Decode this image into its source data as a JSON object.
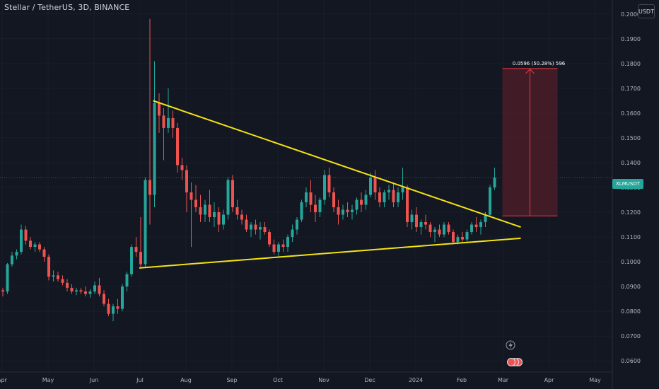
{
  "header": {
    "symbol_title": "Stellar / TetherUS, 3D, BINANCE",
    "currency": "USDT"
  },
  "price_label": "XLMUSDT",
  "measure_label": "0.0596 (50.28%) 596",
  "colors": {
    "background": "#131722",
    "up": "#26a69a",
    "down": "#ef5350",
    "trendline": "#f5e313",
    "measure_box": "#4a1d27",
    "measure_border": "#f23645",
    "axis_text": "#b2b5be",
    "current_price_line": "#26a69a"
  },
  "chart_data": {
    "type": "candlestick",
    "title": "Stellar / TetherUS, 3D, BINANCE",
    "y_axis": {
      "range": [
        0.0555,
        0.2045
      ],
      "ticks": [
        "0.2000",
        "0.1900",
        "0.1800",
        "0.1700",
        "0.1600",
        "0.1500",
        "0.1400",
        "0.1300",
        "0.1200",
        "0.1100",
        "0.1000",
        "0.0900",
        "0.0800",
        "0.0700",
        "0.0600"
      ],
      "position": "right",
      "unit": "USDT"
    },
    "x_axis": {
      "labels": [
        "Apr",
        "May",
        "Jun",
        "Jul",
        "Aug",
        "Sep",
        "Oct",
        "Nov",
        "Dec",
        "2024",
        "Feb",
        "Mar",
        "Apr",
        "May"
      ],
      "label_index": [
        0,
        10,
        20,
        30,
        40,
        50,
        60,
        70,
        80,
        90,
        100,
        109,
        119,
        129
      ]
    },
    "current_price": 0.134,
    "candles": [
      [
        0.0885,
        0.0895,
        0.086,
        0.088
      ],
      [
        0.088,
        0.0995,
        0.087,
        0.099
      ],
      [
        0.099,
        0.104,
        0.098,
        0.1025
      ],
      [
        0.1025,
        0.105,
        0.101,
        0.104
      ],
      [
        0.104,
        0.115,
        0.103,
        0.113
      ],
      [
        0.113,
        0.1145,
        0.107,
        0.1085
      ],
      [
        0.1085,
        0.11,
        0.105,
        0.106
      ],
      [
        0.106,
        0.108,
        0.104,
        0.107
      ],
      [
        0.107,
        0.108,
        0.104,
        0.105
      ],
      [
        0.105,
        0.106,
        0.1,
        0.102
      ],
      [
        0.102,
        0.103,
        0.0925,
        0.094
      ],
      [
        0.094,
        0.0965,
        0.092,
        0.0945
      ],
      [
        0.0945,
        0.096,
        0.092,
        0.093
      ],
      [
        0.093,
        0.0945,
        0.0905,
        0.0915
      ],
      [
        0.0915,
        0.093,
        0.088,
        0.0895
      ],
      [
        0.0895,
        0.091,
        0.087,
        0.088
      ],
      [
        0.088,
        0.0895,
        0.0865,
        0.0885
      ],
      [
        0.0885,
        0.0895,
        0.087,
        0.088
      ],
      [
        0.088,
        0.09,
        0.086,
        0.087
      ],
      [
        0.087,
        0.089,
        0.0855,
        0.088
      ],
      [
        0.088,
        0.092,
        0.087,
        0.0905
      ],
      [
        0.0905,
        0.0935,
        0.086,
        0.087
      ],
      [
        0.087,
        0.0885,
        0.082,
        0.083
      ],
      [
        0.083,
        0.085,
        0.078,
        0.079
      ],
      [
        0.079,
        0.083,
        0.076,
        0.082
      ],
      [
        0.082,
        0.085,
        0.079,
        0.081
      ],
      [
        0.081,
        0.091,
        0.08,
        0.09
      ],
      [
        0.09,
        0.096,
        0.088,
        0.095
      ],
      [
        0.095,
        0.107,
        0.094,
        0.106
      ],
      [
        0.106,
        0.11,
        0.102,
        0.104
      ],
      [
        0.104,
        0.118,
        0.098,
        0.099
      ],
      [
        0.099,
        0.134,
        0.098,
        0.133
      ],
      [
        0.133,
        0.198,
        0.115,
        0.127
      ],
      [
        0.127,
        0.181,
        0.122,
        0.164
      ],
      [
        0.164,
        0.168,
        0.152,
        0.159
      ],
      [
        0.159,
        0.162,
        0.141,
        0.154
      ],
      [
        0.154,
        0.17,
        0.152,
        0.158
      ],
      [
        0.158,
        0.161,
        0.15,
        0.154
      ],
      [
        0.154,
        0.156,
        0.136,
        0.139
      ],
      [
        0.139,
        0.142,
        0.133,
        0.137
      ],
      [
        0.137,
        0.139,
        0.12,
        0.128
      ],
      [
        0.128,
        0.132,
        0.106,
        0.125
      ],
      [
        0.125,
        0.131,
        0.12,
        0.122
      ],
      [
        0.122,
        0.127,
        0.116,
        0.119
      ],
      [
        0.119,
        0.125,
        0.116,
        0.123
      ],
      [
        0.123,
        0.129,
        0.116,
        0.118
      ],
      [
        0.118,
        0.124,
        0.114,
        0.12
      ],
      [
        0.12,
        0.122,
        0.112,
        0.115
      ],
      [
        0.115,
        0.121,
        0.113,
        0.119
      ],
      [
        0.119,
        0.134,
        0.117,
        0.133
      ],
      [
        0.133,
        0.135,
        0.12,
        0.122
      ],
      [
        0.122,
        0.125,
        0.117,
        0.119
      ],
      [
        0.119,
        0.121,
        0.115,
        0.117
      ],
      [
        0.117,
        0.119,
        0.112,
        0.113
      ],
      [
        0.113,
        0.116,
        0.11,
        0.115
      ],
      [
        0.115,
        0.117,
        0.111,
        0.113
      ],
      [
        0.113,
        0.116,
        0.109,
        0.114
      ],
      [
        0.114,
        0.116,
        0.111,
        0.112
      ],
      [
        0.112,
        0.113,
        0.106,
        0.107
      ],
      [
        0.107,
        0.109,
        0.103,
        0.104
      ],
      [
        0.104,
        0.108,
        0.102,
        0.107
      ],
      [
        0.107,
        0.109,
        0.104,
        0.106
      ],
      [
        0.106,
        0.111,
        0.104,
        0.11
      ],
      [
        0.11,
        0.115,
        0.108,
        0.113
      ],
      [
        0.113,
        0.118,
        0.111,
        0.117
      ],
      [
        0.117,
        0.125,
        0.116,
        0.124
      ],
      [
        0.124,
        0.13,
        0.122,
        0.128
      ],
      [
        0.128,
        0.133,
        0.12,
        0.123
      ],
      [
        0.123,
        0.127,
        0.116,
        0.12
      ],
      [
        0.12,
        0.126,
        0.118,
        0.125
      ],
      [
        0.125,
        0.137,
        0.123,
        0.135
      ],
      [
        0.135,
        0.138,
        0.126,
        0.128
      ],
      [
        0.128,
        0.13,
        0.12,
        0.122
      ],
      [
        0.122,
        0.125,
        0.115,
        0.119
      ],
      [
        0.119,
        0.123,
        0.117,
        0.121
      ],
      [
        0.121,
        0.124,
        0.118,
        0.12
      ],
      [
        0.12,
        0.123,
        0.117,
        0.121
      ],
      [
        0.121,
        0.126,
        0.119,
        0.125
      ],
      [
        0.125,
        0.128,
        0.12,
        0.123
      ],
      [
        0.123,
        0.129,
        0.121,
        0.127
      ],
      [
        0.127,
        0.136,
        0.126,
        0.134
      ],
      [
        0.134,
        0.137,
        0.125,
        0.128
      ],
      [
        0.128,
        0.13,
        0.122,
        0.124
      ],
      [
        0.124,
        0.129,
        0.122,
        0.128
      ],
      [
        0.128,
        0.131,
        0.125,
        0.129
      ],
      [
        0.129,
        0.132,
        0.122,
        0.124
      ],
      [
        0.124,
        0.13,
        0.122,
        0.128
      ],
      [
        0.128,
        0.138,
        0.125,
        0.13
      ],
      [
        0.13,
        0.131,
        0.114,
        0.116
      ],
      [
        0.116,
        0.121,
        0.113,
        0.119
      ],
      [
        0.119,
        0.122,
        0.112,
        0.114
      ],
      [
        0.114,
        0.117,
        0.111,
        0.116
      ],
      [
        0.116,
        0.119,
        0.113,
        0.115
      ],
      [
        0.115,
        0.116,
        0.11,
        0.112
      ],
      [
        0.112,
        0.114,
        0.108,
        0.113
      ],
      [
        0.113,
        0.115,
        0.11,
        0.111
      ],
      [
        0.111,
        0.116,
        0.11,
        0.115
      ],
      [
        0.115,
        0.116,
        0.111,
        0.112
      ],
      [
        0.112,
        0.113,
        0.107,
        0.108
      ],
      [
        0.108,
        0.111,
        0.107,
        0.11
      ],
      [
        0.11,
        0.112,
        0.108,
        0.109
      ],
      [
        0.109,
        0.113,
        0.108,
        0.112
      ],
      [
        0.112,
        0.116,
        0.111,
        0.115
      ],
      [
        0.115,
        0.118,
        0.112,
        0.114
      ],
      [
        0.114,
        0.117,
        0.111,
        0.116
      ],
      [
        0.116,
        0.12,
        0.114,
        0.119
      ],
      [
        0.119,
        0.131,
        0.118,
        0.13
      ],
      [
        0.13,
        0.138,
        0.129,
        0.134
      ]
    ],
    "trendlines": [
      {
        "name": "upper",
        "start": [
          33,
          0.165
        ],
        "end": [
          113,
          0.114
        ]
      },
      {
        "name": "lower",
        "start": [
          30,
          0.0975
        ],
        "end": [
          113,
          0.1095
        ]
      }
    ],
    "measure": {
      "from_index": 109,
      "to_index": 121,
      "price_from": 0.1185,
      "price_to": 0.178,
      "change": "0.0596",
      "percent": "50.28%",
      "bars": "596"
    }
  }
}
